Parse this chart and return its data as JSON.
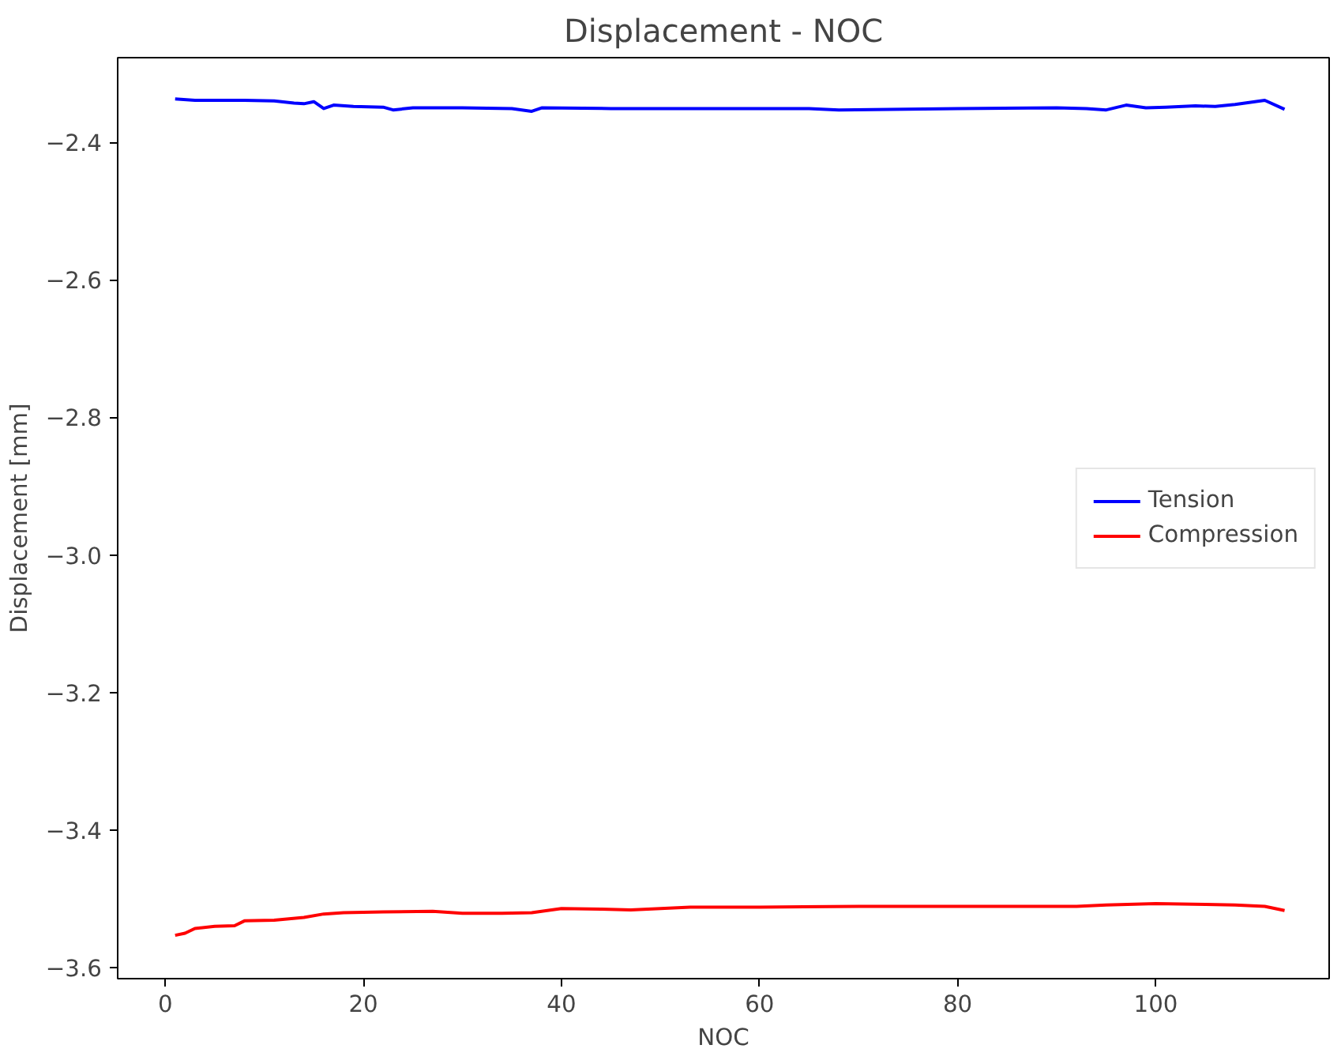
{
  "chart_data": {
    "type": "line",
    "title": "Displacement - NOC",
    "xlabel": "NOC",
    "ylabel": "Displacement [mm]",
    "xlim": [
      -4.8,
      117.5
    ],
    "ylim": [
      -3.616,
      -2.277
    ],
    "xticks": [
      0,
      20,
      40,
      60,
      80,
      100
    ],
    "yticks": [
      {
        "value": -3.6,
        "label": "−3.6"
      },
      {
        "value": -3.4,
        "label": "−3.4"
      },
      {
        "value": -3.2,
        "label": "−3.2"
      },
      {
        "value": -3.0,
        "label": "−3.0"
      },
      {
        "value": -2.8,
        "label": "−2.8"
      },
      {
        "value": -2.6,
        "label": "−2.6"
      },
      {
        "value": -2.4,
        "label": "−2.4"
      }
    ],
    "grid": false,
    "legend": "right",
    "marker": "none",
    "line_style": "solid",
    "series": [
      {
        "name": "Tension",
        "color": "#0000ff",
        "x": [
          1,
          3,
          5,
          8,
          11,
          13,
          14,
          15,
          16,
          17,
          19,
          22,
          23,
          25,
          30,
          35,
          37,
          38,
          45,
          60,
          65,
          68,
          80,
          90,
          93,
          95,
          97,
          99,
          101,
          104,
          106,
          108,
          111,
          113
        ],
        "values": [
          -2.337,
          -2.339,
          -2.339,
          -2.339,
          -2.34,
          -2.343,
          -2.344,
          -2.341,
          -2.351,
          -2.346,
          -2.348,
          -2.349,
          -2.353,
          -2.35,
          -2.35,
          -2.351,
          -2.355,
          -2.35,
          -2.351,
          -2.351,
          -2.351,
          -2.353,
          -2.351,
          -2.35,
          -2.351,
          -2.353,
          -2.346,
          -2.35,
          -2.349,
          -2.347,
          -2.348,
          -2.345,
          -2.339,
          -2.352
        ]
      },
      {
        "name": "Compression",
        "color": "#ff0000",
        "x": [
          1,
          2,
          3,
          5,
          7,
          8,
          11,
          14,
          16,
          18,
          22,
          27,
          30,
          34,
          37,
          40,
          44,
          47,
          50,
          53,
          60,
          70,
          80,
          92,
          95,
          100,
          105,
          108,
          111,
          113
        ],
        "values": [
          -3.553,
          -3.55,
          -3.543,
          -3.54,
          -3.539,
          -3.532,
          -3.531,
          -3.527,
          -3.522,
          -3.52,
          -3.519,
          -3.518,
          -3.521,
          -3.521,
          -3.52,
          -3.514,
          -3.515,
          -3.516,
          -3.514,
          -3.512,
          -3.512,
          -3.511,
          -3.511,
          -3.511,
          -3.509,
          -3.507,
          -3.508,
          -3.509,
          -3.511,
          -3.517
        ]
      }
    ]
  }
}
